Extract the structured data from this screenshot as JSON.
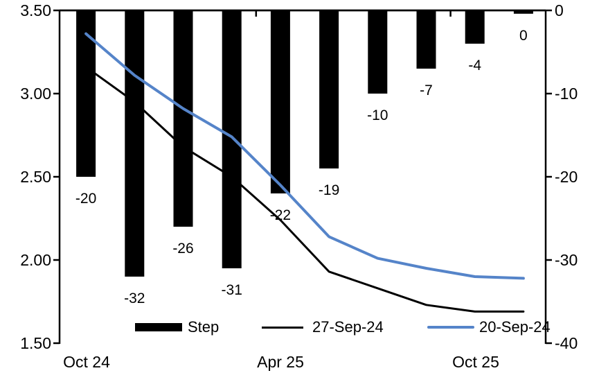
{
  "chart_data": {
    "type": "bar+line combo, dual axis",
    "title": "",
    "categories": [
      "Oct 24",
      "",
      "",
      "",
      "Apr 25",
      "",
      "",
      "",
      "Oct 25",
      ""
    ],
    "x_axis": {
      "labels": [
        "Oct 24",
        "Apr 25",
        "Oct 25"
      ],
      "label_category_index": [
        1,
        5,
        9
      ]
    },
    "left_axis": {
      "min": 1.5,
      "max": 3.5,
      "ticks": [
        "3.50",
        "3.00",
        "2.50",
        "2.00",
        "1.50"
      ]
    },
    "right_axis": {
      "min": -40,
      "max": 0,
      "ticks": [
        "0",
        "-10",
        "-20",
        "-30",
        "-40"
      ]
    },
    "bar_series": {
      "name": "Step",
      "axis": "right",
      "color": "#000000",
      "values": [
        -20,
        -32,
        -26,
        -31,
        -22,
        -19,
        -10,
        -7,
        -4,
        -0.4
      ],
      "labels": [
        "-20",
        "-32",
        "-26",
        "-31",
        "-22",
        "-19",
        "-10",
        "-7",
        "-4",
        "0"
      ]
    },
    "line_series": [
      {
        "name": "27-Sep-24",
        "axis": "left",
        "color": "#000000",
        "width": 3,
        "values": [
          3.16,
          2.95,
          2.68,
          2.5,
          2.24,
          1.93,
          1.83,
          1.73,
          1.69,
          1.69
        ]
      },
      {
        "name": "20-Sep-24",
        "axis": "left",
        "color": "#5584C9",
        "width": 4,
        "values": [
          3.36,
          3.11,
          2.91,
          2.74,
          2.45,
          2.14,
          2.01,
          1.95,
          1.9,
          1.89
        ]
      }
    ],
    "legend": [
      {
        "label": "Step",
        "type": "bar",
        "color": "#000000"
      },
      {
        "label": "27-Sep-24",
        "type": "line",
        "color": "#000000"
      },
      {
        "label": "20-Sep-24",
        "type": "line",
        "color": "#5584C9"
      }
    ],
    "grid": "off",
    "legend_position": "bottom-inside"
  }
}
